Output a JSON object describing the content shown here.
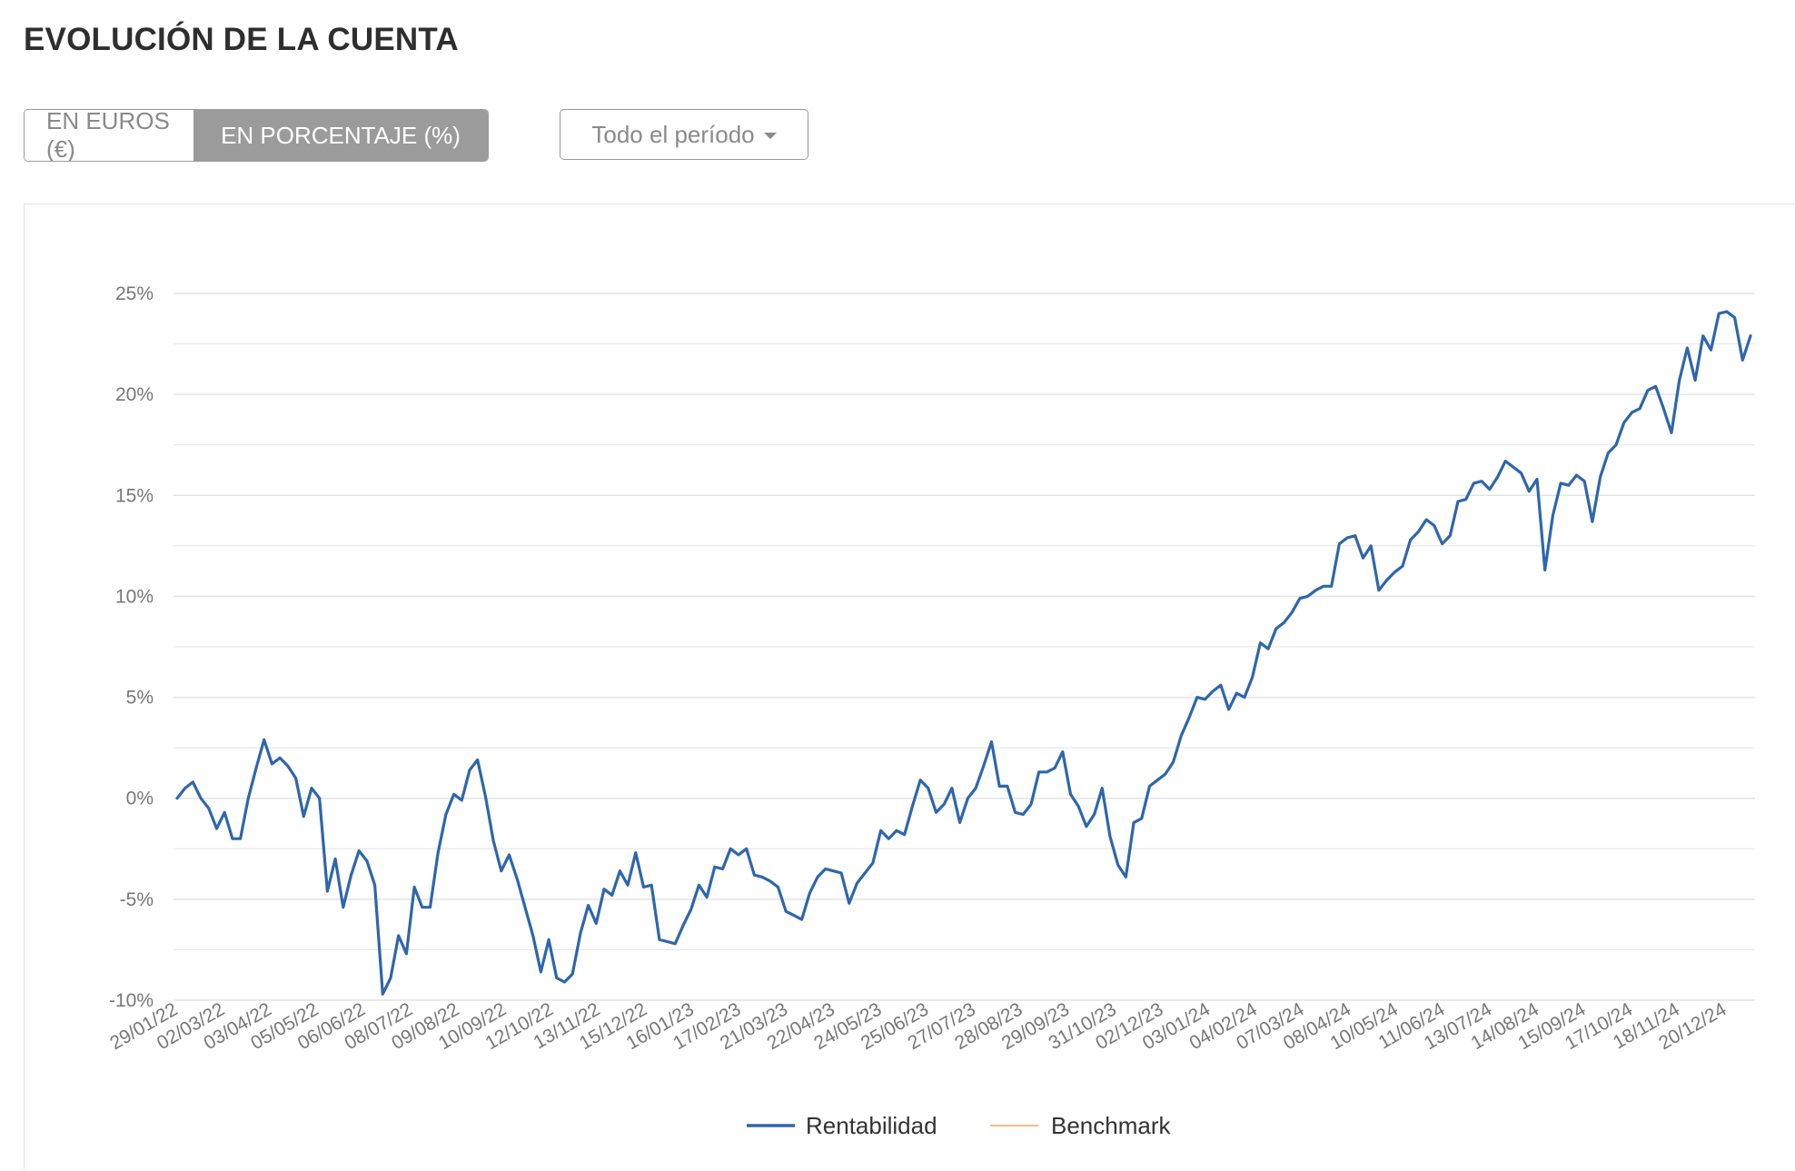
{
  "page": {
    "title": "EVOLUCIÓN DE LA CUENTA"
  },
  "view_toggle": {
    "options": [
      {
        "label": "EN EUROS (€)",
        "active": false
      },
      {
        "label": "EN PORCENTAJE (%)",
        "active": true
      }
    ]
  },
  "period_select": {
    "value": "Todo el período"
  },
  "colors": {
    "series_1": "#2e66ad",
    "series_2": "#f4a460",
    "grid": "#e4e4e4",
    "active_toggle": "#9b9b9b"
  },
  "chart_data": {
    "type": "line",
    "ylim": [
      -10,
      25
    ],
    "yticks": [
      -10,
      -5,
      0,
      5,
      10,
      15,
      20,
      25
    ],
    "ytick_labels": [
      "-10%",
      "-5%",
      "0%",
      "5%",
      "10%",
      "15%",
      "20%",
      "25%"
    ],
    "minor_grid": true,
    "xtick_labels": [
      "29/01/22",
      "02/03/22",
      "03/04/22",
      "05/05/22",
      "06/06/22",
      "08/07/22",
      "09/08/22",
      "10/09/22",
      "12/10/22",
      "13/11/22",
      "15/12/22",
      "16/01/23",
      "17/02/23",
      "21/03/23",
      "22/04/23",
      "24/05/23",
      "25/06/23",
      "27/07/23",
      "28/08/23",
      "29/09/23",
      "31/10/23",
      "02/12/23",
      "03/01/24",
      "04/02/24",
      "07/03/24",
      "08/04/24",
      "10/05/24",
      "11/06/24",
      "13/07/24",
      "14/08/24",
      "15/09/24",
      "17/10/24",
      "18/11/24",
      "20/12/24"
    ],
    "legend_position": "bottom-center",
    "series": [
      {
        "name": "Rentabilidad",
        "values": [
          0.0,
          0.5,
          0.8,
          0.0,
          -0.5,
          -1.5,
          -0.7,
          -2.0,
          -2.0,
          0.0,
          1.5,
          2.9,
          1.7,
          2.0,
          1.6,
          1.0,
          -0.9,
          0.5,
          0.0,
          -4.6,
          -3.0,
          -5.4,
          -3.8,
          -2.6,
          -3.1,
          -4.3,
          -9.7,
          -8.9,
          -6.8,
          -7.7,
          -4.4,
          -5.4,
          -5.4,
          -2.7,
          -0.8,
          0.2,
          -0.1,
          1.4,
          1.9,
          0.1,
          -2.1,
          -3.6,
          -2.8,
          -4.0,
          -5.4,
          -6.8,
          -8.6,
          -7.0,
          -8.9,
          -9.1,
          -8.7,
          -6.7,
          -5.3,
          -6.2,
          -4.5,
          -4.8,
          -3.6,
          -4.3,
          -2.7,
          -4.4,
          -4.3,
          -7.0,
          -7.1,
          -7.2,
          -6.3,
          -5.5,
          -4.3,
          -4.9,
          -3.4,
          -3.5,
          -2.5,
          -2.8,
          -2.5,
          -3.8,
          -3.9,
          -4.1,
          -4.4,
          -5.6,
          -5.8,
          -6.0,
          -4.7,
          -3.9,
          -3.5,
          -3.6,
          -3.7,
          -5.2,
          -4.2,
          -3.7,
          -3.2,
          -1.6,
          -2.0,
          -1.6,
          -1.8,
          -0.4,
          0.9,
          0.5,
          -0.7,
          -0.3,
          0.5,
          -1.2,
          0.0,
          0.5,
          1.6,
          2.8,
          0.6,
          0.6,
          -0.7,
          -0.8,
          -0.3,
          1.3,
          1.3,
          1.5,
          2.3,
          0.2,
          -0.4,
          -1.4,
          -0.8,
          0.5,
          -1.9,
          -3.3,
          -3.9,
          -1.2,
          -1.0,
          0.6,
          0.9,
          1.2,
          1.8,
          3.1,
          4.0,
          5.0,
          4.9,
          5.3,
          5.6,
          4.4,
          5.2,
          5.0,
          6.0,
          7.7,
          7.4,
          8.4,
          8.7,
          9.2,
          9.9,
          10.0,
          10.3,
          10.5,
          10.5,
          12.6,
          12.9,
          13.0,
          11.9,
          12.5,
          10.3,
          10.8,
          11.2,
          11.5,
          12.8,
          13.2,
          13.8,
          13.5,
          12.6,
          13.0,
          14.7,
          14.8,
          15.6,
          15.7,
          15.3,
          15.9,
          16.7,
          16.4,
          16.1,
          15.2,
          15.8,
          11.3,
          14.0,
          15.6,
          15.5,
          16.0,
          15.7,
          13.7,
          15.9,
          17.1,
          17.5,
          18.6,
          19.1,
          19.3,
          20.2,
          20.4,
          19.3,
          18.1,
          20.7,
          22.3,
          20.7,
          22.9,
          22.2,
          24.0,
          24.1,
          23.8,
          21.7,
          22.9
        ]
      },
      {
        "name": "Benchmark",
        "values": []
      }
    ]
  }
}
